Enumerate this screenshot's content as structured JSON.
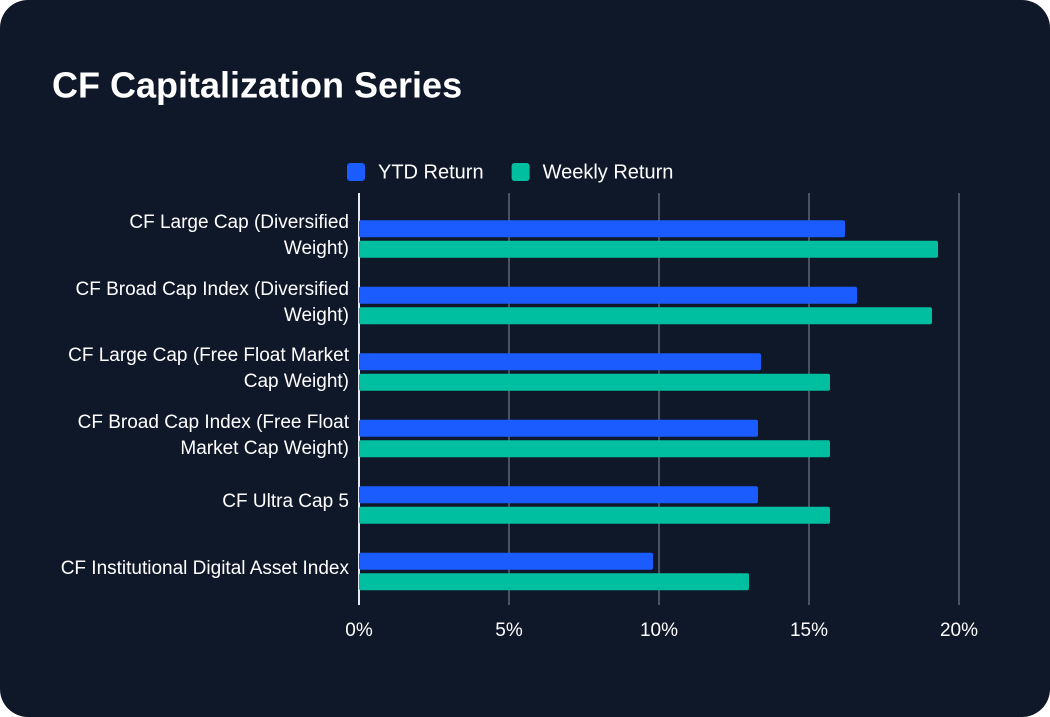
{
  "chart_data": {
    "type": "bar",
    "orientation": "horizontal",
    "title": "CF Capitalization Series",
    "categories": [
      "CF Large Cap (Diversified Weight)",
      "CF Broad Cap Index (Diversified Weight)",
      "CF Large Cap (Free Float Market Cap Weight)",
      "CF Broad Cap Index (Free Float Market Cap Weight)",
      "CF Ultra Cap 5",
      "CF Institutional Digital Asset Index"
    ],
    "series": [
      {
        "name": "YTD Return",
        "color": "#1a5cff",
        "values": [
          16.2,
          16.6,
          13.4,
          13.3,
          13.3,
          9.8
        ]
      },
      {
        "name": "Weekly Return",
        "color": "#00bfa0",
        "values": [
          19.3,
          19.1,
          15.7,
          15.7,
          15.7,
          13.0
        ]
      }
    ],
    "xlim": [
      0,
      20
    ],
    "xticks": [
      {
        "value": 0,
        "label": "0%"
      },
      {
        "value": 5,
        "label": "5%"
      },
      {
        "value": 10,
        "label": "10%"
      },
      {
        "value": 15,
        "label": "15%"
      },
      {
        "value": 20,
        "label": "20%"
      }
    ],
    "grid": true,
    "legend": "top"
  }
}
